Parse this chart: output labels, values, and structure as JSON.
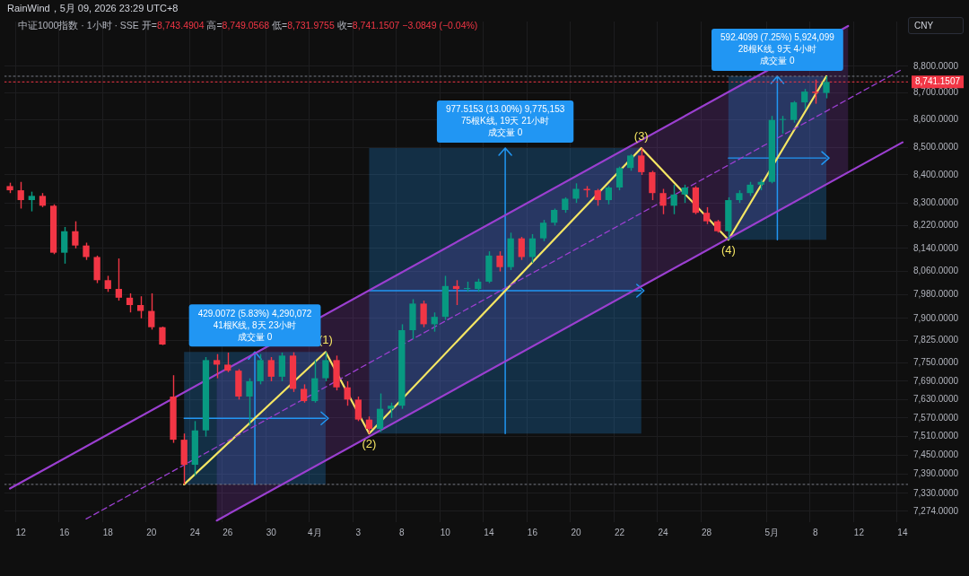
{
  "chart_data": {
    "type": "candlestick",
    "title": "RainWind，5月 09, 2026 23:29 UTC+8",
    "subtitle": "中证1000指数 · 1小时 · SSE  开=8,743.4904  高=8,749.0568  低=8,731.9755  收=8,741.1507  −3.0849 (−0.04%)",
    "ylabel": "CNY",
    "annotations": [
      {
        "text": "(1)",
        "y": 7787
      },
      {
        "text": "(2)",
        "y": 7520
      },
      {
        "text": "(3)",
        "y": 8497.5
      },
      {
        "text": "(4)",
        "y": 8170
      },
      "429.0072 (5.83%) 4,290,072",
      {
        "text": "41根K线, 8天 23小时",
        "y": 7787
      },
      {
        "text": "成交量 0",
        "y": 7787
      },
      "977.5153 (13.00%) 9,775,153",
      {
        "text": "75根K线, 19天 21小时",
        "y": 8497.5
      },
      {
        "text": "成交量 0",
        "y": 8497.5
      },
      "592.4099 (7.25%) 5,924,099",
      {
        "text": "28根K线, 9天 4小时",
        "y": 8762.4
      },
      {
        "text": "成交量 0",
        "y": 8762.4
      }
    ],
    "categories": [
      null,
      "12",
      null,
      null,
      null,
      "16",
      null,
      null,
      null,
      "18",
      null,
      null,
      null,
      "20",
      null,
      null,
      null,
      "24",
      null,
      null,
      "26",
      null,
      null,
      null,
      "30",
      null,
      null,
      null,
      "4月",
      null,
      null,
      null,
      "3",
      null,
      null,
      null,
      "8",
      null,
      null,
      null,
      "10",
      null,
      null,
      null,
      "14",
      null,
      null,
      null,
      "16",
      null,
      null,
      null,
      "20",
      null,
      null,
      null,
      "22",
      null,
      null,
      null,
      "24",
      null,
      null,
      null,
      "28",
      null,
      null,
      null,
      null,
      null,
      "5月",
      null,
      null,
      null,
      "8",
      null,
      null,
      null,
      "12",
      null,
      null,
      null,
      "14"
    ],
    "ohlc": [
      [
        8360,
        8372,
        8335,
        8345
      ],
      [
        8345,
        8375,
        8280,
        8310
      ],
      [
        8310,
        8340,
        8270,
        8325
      ],
      [
        8325,
        8335,
        8285,
        8290
      ],
      [
        8290,
        8295,
        8120,
        8125
      ],
      [
        8125,
        8215,
        8087,
        8200
      ],
      [
        8200,
        8235,
        8140,
        8150
      ],
      [
        8150,
        8160,
        8100,
        8110
      ],
      [
        8110,
        8115,
        8020,
        8030
      ],
      [
        8030,
        8045,
        7990,
        8000
      ],
      [
        8000,
        8105,
        7960,
        7970
      ],
      [
        7970,
        7985,
        7920,
        7945
      ],
      [
        7945,
        7975,
        7900,
        7925
      ],
      [
        7925,
        7985,
        7862,
        7870
      ],
      [
        7870,
        7872,
        7810,
        7812
      ],
      [
        7640,
        7710,
        7490,
        7500
      ],
      [
        7500,
        7520,
        7358,
        7420
      ],
      [
        7420,
        7560,
        7385,
        7530
      ],
      [
        7530,
        7770,
        7510,
        7760
      ],
      [
        7760,
        7780,
        7700,
        7745
      ],
      [
        7745,
        7785,
        7720,
        7725
      ],
      [
        7725,
        7730,
        7630,
        7640
      ],
      [
        7640,
        7700,
        7545,
        7690
      ],
      [
        7690,
        7780,
        7680,
        7760
      ],
      [
        7760,
        7770,
        7690,
        7705
      ],
      [
        7705,
        7785,
        7690,
        7775
      ],
      [
        7775,
        7786,
        7655,
        7665
      ],
      [
        7665,
        7680,
        7620,
        7625
      ],
      [
        7625,
        7760,
        7620,
        7700
      ],
      [
        7700,
        7787,
        7690,
        7760
      ],
      [
        7760,
        7775,
        7660,
        7670
      ],
      [
        7670,
        7690,
        7610,
        7630
      ],
      [
        7630,
        7640,
        7560,
        7565
      ],
      [
        7565,
        7575,
        7520,
        7535
      ],
      [
        7535,
        7650,
        7525,
        7600
      ],
      [
        7600,
        7620,
        7570,
        7610
      ],
      [
        7610,
        7880,
        7600,
        7860
      ],
      [
        7860,
        7965,
        7830,
        7950
      ],
      [
        7950,
        7960,
        7870,
        7880
      ],
      [
        7880,
        7920,
        7855,
        7905
      ],
      [
        7905,
        8045,
        7895,
        8010
      ],
      [
        8010,
        8030,
        7945,
        8000
      ],
      [
        8000,
        8025,
        7990,
        8000
      ],
      [
        8000,
        8035,
        7990,
        8025
      ],
      [
        8025,
        8130,
        8020,
        8115
      ],
      [
        8115,
        8130,
        8060,
        8075
      ],
      [
        8075,
        8195,
        8065,
        8175
      ],
      [
        8175,
        8180,
        8100,
        8110
      ],
      [
        8110,
        8190,
        8090,
        8175
      ],
      [
        8175,
        8240,
        8165,
        8230
      ],
      [
        8230,
        8280,
        8220,
        8275
      ],
      [
        8275,
        8320,
        8265,
        8315
      ],
      [
        8315,
        8370,
        8300,
        8350
      ],
      [
        8350,
        8360,
        8320,
        8345
      ],
      [
        8345,
        8350,
        8290,
        8310
      ],
      [
        8310,
        8360,
        8295,
        8355
      ],
      [
        8355,
        8430,
        8345,
        8425
      ],
      [
        8425,
        8475,
        8415,
        8470
      ],
      [
        8470,
        8497.5,
        8400,
        8410
      ],
      [
        8410,
        8415,
        8310,
        8335
      ],
      [
        8335,
        8350,
        8260,
        8290
      ],
      [
        8290,
        8365,
        8260,
        8330
      ],
      [
        8330,
        8365,
        8300,
        8355
      ],
      [
        8355,
        8360,
        8260,
        8265
      ],
      [
        8265,
        8285,
        8225,
        8235
      ],
      [
        8235,
        8240,
        8195,
        8200
      ],
      [
        8200,
        8320,
        8170,
        8310
      ],
      [
        8310,
        8345,
        8300,
        8335
      ],
      [
        8335,
        8375,
        8325,
        8365
      ],
      [
        8365,
        8385,
        8345,
        8375
      ],
      [
        8375,
        8615,
        8370,
        8600
      ],
      [
        8600,
        8615,
        8550,
        8600
      ],
      [
        8600,
        8670,
        8590,
        8665
      ],
      [
        8665,
        8715,
        8640,
        8705
      ],
      [
        8705,
        8750,
        8660,
        8700
      ],
      [
        8700,
        8762.4,
        8680,
        8741.1507
      ],
      null,
      null,
      null,
      null,
      null,
      null,
      null
    ],
    "colors": [
      "#f23645",
      "#f23645",
      "#089981",
      "#f23645",
      "#f23645",
      "#089981",
      "#f23645",
      "#f23645",
      "#f23645",
      "#f23645",
      "#f23645",
      "#f23645",
      "#f23645",
      "#f23645",
      "#f23645",
      "#f23645",
      "#f23645",
      "#089981",
      "#089981",
      "#f23645",
      "#f23645",
      "#f23645",
      "#089981",
      "#089981",
      "#f23645",
      "#089981",
      "#f23645",
      "#f23645",
      "#089981",
      "#089981",
      "#f23645",
      "#f23645",
      "#f23645",
      "#f23645",
      "#089981",
      "#089981",
      "#089981",
      "#089981",
      "#f23645",
      "#089981",
      "#089981",
      "#f23645",
      "#089981",
      "#089981",
      "#089981",
      "#f23645",
      "#089981",
      "#f23645",
      "#089981",
      "#089981",
      "#089981",
      "#089981",
      "#089981",
      "#f23645",
      "#f23645",
      "#089981",
      "#089981",
      "#089981",
      "#f23645",
      "#f23645",
      "#f23645",
      "#089981",
      "#089981",
      "#f23645",
      "#f23645",
      "#f23645",
      "#089981",
      "#089981",
      "#089981",
      "#089981",
      "#089981",
      "#089981",
      "#089981",
      "#089981",
      "#f23645",
      "#089981",
      null,
      null,
      null,
      null,
      null,
      null,
      null
    ],
    "ylim": [
      7240,
      8970
    ],
    "log": true,
    "grid": true,
    "yticks": [
      {
        "value": 8800,
        "label": "8,800.0000"
      },
      {
        "value": 8700,
        "label": "8,700.0000"
      },
      {
        "value": 8600,
        "label": "8,600.0000"
      },
      {
        "value": 8500,
        "label": "8,500.0000"
      },
      {
        "value": 8400,
        "label": "8,400.0000"
      },
      {
        "value": 8300,
        "label": "8,300.0000"
      },
      {
        "value": 8220,
        "label": "8,220.0000"
      },
      {
        "value": 8140,
        "label": "8,140.0000"
      },
      {
        "value": 8060,
        "label": "8,060.0000"
      },
      {
        "value": 7980,
        "label": "7,980.0000"
      },
      {
        "value": 7900,
        "label": "7,900.0000"
      },
      {
        "value": 7825,
        "label": "7,825.0000"
      },
      {
        "value": 7750,
        "label": "7,750.0000"
      },
      {
        "value": 7690,
        "label": "7,690.0000"
      },
      {
        "value": 7630,
        "label": "7,630.0000"
      },
      {
        "value": 7570,
        "label": "7,570.0000"
      },
      {
        "value": 7510,
        "label": "7,510.0000"
      },
      {
        "value": 7450,
        "label": "7,450.0000"
      },
      {
        "value": 7390,
        "label": "7,390.0000"
      },
      {
        "value": 7330,
        "label": "7,330.0000"
      },
      {
        "value": 7274,
        "label": "7,274.0000"
      }
    ],
    "ref_lines": [
      {
        "axis": "y",
        "value": 8741.1507,
        "label": "8,741.1507",
        "color": "#f23645",
        "line_style": "dotted"
      },
      {
        "axis": "y",
        "value": 8762.4,
        "color": "#787b86",
        "line_style": "dotted"
      },
      {
        "axis": "y",
        "value": 7358,
        "color": "#787b86",
        "line_style": "dotted"
      }
    ],
    "series": [
      {
        "type": "line",
        "color": "#9b3fd0",
        "values": [
          7345,
          null,
          null,
          null,
          null,
          null,
          null,
          null,
          null,
          null,
          null,
          null,
          null,
          null,
          null,
          null,
          null,
          null,
          null,
          null,
          null,
          null,
          null,
          null,
          null,
          null,
          null,
          null,
          null,
          null,
          null,
          null,
          null,
          null,
          null,
          null,
          null,
          null,
          null,
          null,
          null,
          null,
          null,
          null,
          null,
          null,
          null,
          null,
          null,
          null,
          null,
          null,
          null,
          null,
          null,
          null,
          null,
          null,
          null,
          null,
          null,
          null,
          null,
          null,
          null,
          null,
          null,
          null,
          null,
          null,
          null,
          null,
          null,
          null,
          null,
          null,
          null,
          8953,
          null,
          null,
          null,
          null,
          null
        ]
      },
      {
        "type": "line",
        "color": "#9b3fd0",
        "values": [
          null,
          null,
          null,
          null,
          null,
          null,
          null,
          null,
          null,
          null,
          null,
          null,
          null,
          null,
          null,
          null,
          null,
          null,
          null,
          7245,
          null,
          null,
          null,
          null,
          null,
          null,
          null,
          null,
          null,
          null,
          null,
          null,
          null,
          null,
          null,
          null,
          null,
          null,
          null,
          null,
          null,
          null,
          null,
          null,
          null,
          null,
          null,
          null,
          null,
          null,
          null,
          null,
          null,
          null,
          null,
          null,
          null,
          null,
          null,
          null,
          null,
          null,
          null,
          null,
          null,
          null,
          null,
          null,
          null,
          null,
          null,
          null,
          null,
          null,
          null,
          null,
          null,
          null,
          null,
          null,
          null,
          null,
          8518
        ]
      },
      {
        "type": "line",
        "color": "#9b3fd0",
        "line_style": "dashed",
        "values": [
          null,
          null,
          null,
          null,
          null,
          null,
          null,
          7250,
          null,
          null,
          null,
          null,
          null,
          null,
          null,
          null,
          null,
          null,
          null,
          null,
          null,
          null,
          null,
          null,
          null,
          null,
          null,
          null,
          null,
          null,
          null,
          null,
          null,
          null,
          null,
          null,
          null,
          null,
          null,
          null,
          null,
          null,
          null,
          null,
          null,
          null,
          null,
          null,
          null,
          null,
          null,
          null,
          null,
          null,
          null,
          null,
          null,
          null,
          null,
          null,
          null,
          null,
          null,
          null,
          null,
          null,
          null,
          null,
          null,
          null,
          null,
          null,
          null,
          null,
          null,
          null,
          null,
          null,
          null,
          null,
          null,
          null,
          8789
        ],
        "lower": [
          null,
          null,
          null,
          null,
          null,
          null,
          null,
          null,
          null,
          null,
          null,
          null,
          null,
          null,
          null,
          null,
          null,
          null,
          null,
          7245,
          null,
          null,
          null,
          null,
          null,
          null,
          null,
          null,
          null,
          null,
          null,
          null,
          null,
          null,
          null,
          null,
          null,
          null,
          null,
          null,
          null,
          null,
          null,
          null,
          null,
          null,
          null,
          null,
          null,
          null,
          null,
          null,
          null,
          null,
          null,
          null,
          null,
          null,
          null,
          null,
          null,
          null,
          null,
          null,
          null,
          null,
          null,
          null,
          null,
          null,
          null,
          null,
          null,
          null,
          null,
          null,
          null,
          8410,
          null,
          null,
          null,
          null,
          null
        ],
        "upper": [
          null,
          null,
          null,
          null,
          null,
          null,
          null,
          null,
          null,
          null,
          null,
          null,
          null,
          null,
          null,
          null,
          null,
          null,
          null,
          7713,
          null,
          null,
          null,
          null,
          null,
          null,
          null,
          null,
          null,
          null,
          null,
          null,
          null,
          null,
          null,
          null,
          null,
          null,
          null,
          null,
          null,
          null,
          null,
          null,
          null,
          null,
          null,
          null,
          null,
          null,
          null,
          null,
          null,
          null,
          null,
          null,
          null,
          null,
          null,
          null,
          null,
          null,
          null,
          null,
          null,
          null,
          null,
          null,
          null,
          null,
          null,
          null,
          null,
          null,
          null,
          null,
          null,
          8953,
          null,
          null,
          null,
          null,
          null
        ]
      },
      {
        "type": "line",
        "color": "#f5e663",
        "values": [
          null,
          null,
          null,
          null,
          null,
          null,
          null,
          null,
          null,
          null,
          null,
          null,
          null,
          null,
          null,
          null,
          7358,
          null,
          null,
          null,
          null,
          null,
          null,
          null,
          null,
          null,
          null,
          null,
          null,
          7787,
          null,
          null,
          null,
          7520,
          null,
          null,
          null,
          null,
          null,
          null,
          null,
          null,
          null,
          null,
          null,
          null,
          null,
          null,
          null,
          null,
          null,
          null,
          null,
          null,
          null,
          null,
          null,
          null,
          8497.5,
          null,
          null,
          null,
          null,
          null,
          null,
          null,
          8170,
          null,
          null,
          null,
          null,
          null,
          null,
          null,
          null,
          8762.4,
          null,
          null,
          null,
          null,
          null,
          null,
          null
        ]
      },
      {
        "type": "line",
        "color": "#2196f3",
        "values": [
          null,
          null,
          null,
          null,
          null,
          null,
          null,
          null,
          null,
          null,
          null,
          null,
          null,
          null,
          null,
          null,
          7569,
          null,
          null,
          null,
          null,
          null,
          null,
          null,
          null,
          null,
          null,
          null,
          null,
          7569,
          null,
          null,
          null,
          null,
          null,
          null,
          null,
          null,
          null,
          null,
          null,
          null,
          null,
          null,
          null,
          null,
          null,
          null,
          null,
          null,
          null,
          null,
          null,
          null,
          null,
          null,
          null,
          null,
          null,
          null,
          null,
          null,
          null,
          null,
          null,
          null,
          null,
          null,
          null,
          null,
          null,
          null,
          null,
          null,
          null,
          null,
          null,
          null,
          null,
          null,
          null,
          null,
          null
        ],
        "lower": [
          null,
          null,
          null,
          null,
          null,
          null,
          null,
          null,
          null,
          null,
          null,
          null,
          null,
          null,
          null,
          null,
          7358,
          null,
          null,
          null,
          null,
          null,
          null,
          null,
          null,
          null,
          null,
          null,
          null,
          7358,
          null,
          null,
          null,
          null,
          null,
          null,
          null,
          null,
          null,
          null,
          null,
          null,
          null,
          null,
          null,
          null,
          null,
          null,
          null,
          null,
          null,
          null,
          null,
          null,
          null,
          null,
          null,
          null,
          null,
          null,
          null,
          null,
          null,
          null,
          null,
          null,
          null,
          null,
          null,
          null,
          null,
          null,
          null,
          null,
          null,
          null,
          null,
          null,
          null,
          null,
          null,
          null,
          null
        ],
        "upper": [
          null,
          null,
          null,
          null,
          null,
          null,
          null,
          null,
          null,
          null,
          null,
          null,
          null,
          null,
          null,
          null,
          7787,
          null,
          null,
          null,
          null,
          null,
          null,
          null,
          null,
          null,
          null,
          null,
          null,
          7787,
          null,
          null,
          null,
          null,
          null,
          null,
          null,
          null,
          null,
          null,
          null,
          null,
          null,
          null,
          null,
          null,
          null,
          null,
          null,
          null,
          null,
          null,
          null,
          null,
          null,
          null,
          null,
          null,
          null,
          null,
          null,
          null,
          null,
          null,
          null,
          null,
          null,
          null,
          null,
          null,
          null,
          null,
          null,
          null,
          null,
          null,
          null,
          null,
          null,
          null,
          null,
          null,
          null
        ]
      },
      {
        "type": "line",
        "color": "#2196f3",
        "values": [
          null,
          null,
          null,
          null,
          null,
          null,
          null,
          null,
          null,
          null,
          null,
          null,
          null,
          null,
          null,
          null,
          null,
          null,
          null,
          null,
          null,
          null,
          null,
          null,
          null,
          null,
          null,
          null,
          null,
          null,
          null,
          null,
          null,
          7994,
          null,
          null,
          null,
          null,
          null,
          null,
          null,
          null,
          null,
          null,
          null,
          null,
          null,
          null,
          null,
          null,
          null,
          null,
          null,
          null,
          null,
          null,
          null,
          null,
          7994,
          null,
          null,
          null,
          null,
          null,
          null,
          null,
          null,
          null,
          null,
          null,
          null,
          null,
          null,
          null,
          null,
          null,
          null,
          null,
          null,
          null,
          null,
          null,
          null
        ],
        "lower": [
          null,
          null,
          null,
          null,
          null,
          null,
          null,
          null,
          null,
          null,
          null,
          null,
          null,
          null,
          null,
          null,
          null,
          null,
          null,
          null,
          null,
          null,
          null,
          null,
          null,
          null,
          null,
          null,
          null,
          null,
          null,
          null,
          null,
          7520,
          null,
          null,
          null,
          null,
          null,
          null,
          null,
          null,
          null,
          null,
          null,
          null,
          null,
          null,
          null,
          null,
          null,
          null,
          null,
          null,
          null,
          null,
          null,
          null,
          7520,
          null,
          null,
          null,
          null,
          null,
          null,
          null,
          null,
          null,
          null,
          null,
          null,
          null,
          null,
          null,
          null,
          null,
          null,
          null,
          null,
          null,
          null,
          null,
          null
        ],
        "upper": [
          null,
          null,
          null,
          null,
          null,
          null,
          null,
          null,
          null,
          null,
          null,
          null,
          null,
          null,
          null,
          null,
          null,
          null,
          null,
          null,
          null,
          null,
          null,
          null,
          null,
          null,
          null,
          null,
          null,
          null,
          null,
          null,
          null,
          8497.5,
          null,
          null,
          null,
          null,
          null,
          null,
          null,
          null,
          null,
          null,
          null,
          null,
          null,
          null,
          null,
          null,
          null,
          null,
          null,
          null,
          null,
          null,
          null,
          null,
          8497.5,
          null,
          null,
          null,
          null,
          null,
          null,
          null,
          null,
          null,
          null,
          null,
          null,
          null,
          null,
          null,
          null,
          null,
          null,
          null,
          null,
          null,
          null,
          null,
          null
        ]
      },
      {
        "type": "line",
        "color": "#2196f3",
        "values": [
          null,
          null,
          null,
          null,
          null,
          null,
          null,
          null,
          null,
          null,
          null,
          null,
          null,
          null,
          null,
          null,
          null,
          null,
          null,
          null,
          null,
          null,
          null,
          null,
          null,
          null,
          null,
          null,
          null,
          null,
          null,
          null,
          null,
          null,
          null,
          null,
          null,
          null,
          null,
          null,
          null,
          null,
          null,
          null,
          null,
          null,
          null,
          null,
          null,
          null,
          null,
          null,
          null,
          null,
          null,
          null,
          null,
          null,
          null,
          null,
          null,
          null,
          null,
          null,
          null,
          null,
          8461,
          null,
          null,
          null,
          null,
          null,
          null,
          null,
          null,
          8461,
          null,
          null,
          null,
          null,
          null,
          null,
          null
        ],
        "lower": [
          null,
          null,
          null,
          null,
          null,
          null,
          null,
          null,
          null,
          null,
          null,
          null,
          null,
          null,
          null,
          null,
          null,
          null,
          null,
          null,
          null,
          null,
          null,
          null,
          null,
          null,
          null,
          null,
          null,
          null,
          null,
          null,
          null,
          null,
          null,
          null,
          null,
          null,
          null,
          null,
          null,
          null,
          null,
          null,
          null,
          null,
          null,
          null,
          null,
          null,
          null,
          null,
          null,
          null,
          null,
          null,
          null,
          null,
          null,
          null,
          null,
          null,
          null,
          null,
          null,
          null,
          8170,
          null,
          null,
          null,
          null,
          null,
          null,
          null,
          null,
          8170,
          null,
          null,
          null,
          null,
          null,
          null,
          null
        ],
        "upper": [
          null,
          null,
          null,
          null,
          null,
          null,
          null,
          null,
          null,
          null,
          null,
          null,
          null,
          null,
          null,
          null,
          null,
          null,
          null,
          null,
          null,
          null,
          null,
          null,
          null,
          null,
          null,
          null,
          null,
          null,
          null,
          null,
          null,
          null,
          null,
          null,
          null,
          null,
          null,
          null,
          null,
          null,
          null,
          null,
          null,
          null,
          null,
          null,
          null,
          null,
          null,
          null,
          null,
          null,
          null,
          null,
          null,
          null,
          null,
          null,
          null,
          null,
          null,
          null,
          null,
          null,
          8762.4,
          null,
          null,
          null,
          null,
          null,
          null,
          null,
          null,
          8762.4,
          null,
          null,
          null,
          null,
          null,
          null,
          null
        ]
      }
    ]
  }
}
